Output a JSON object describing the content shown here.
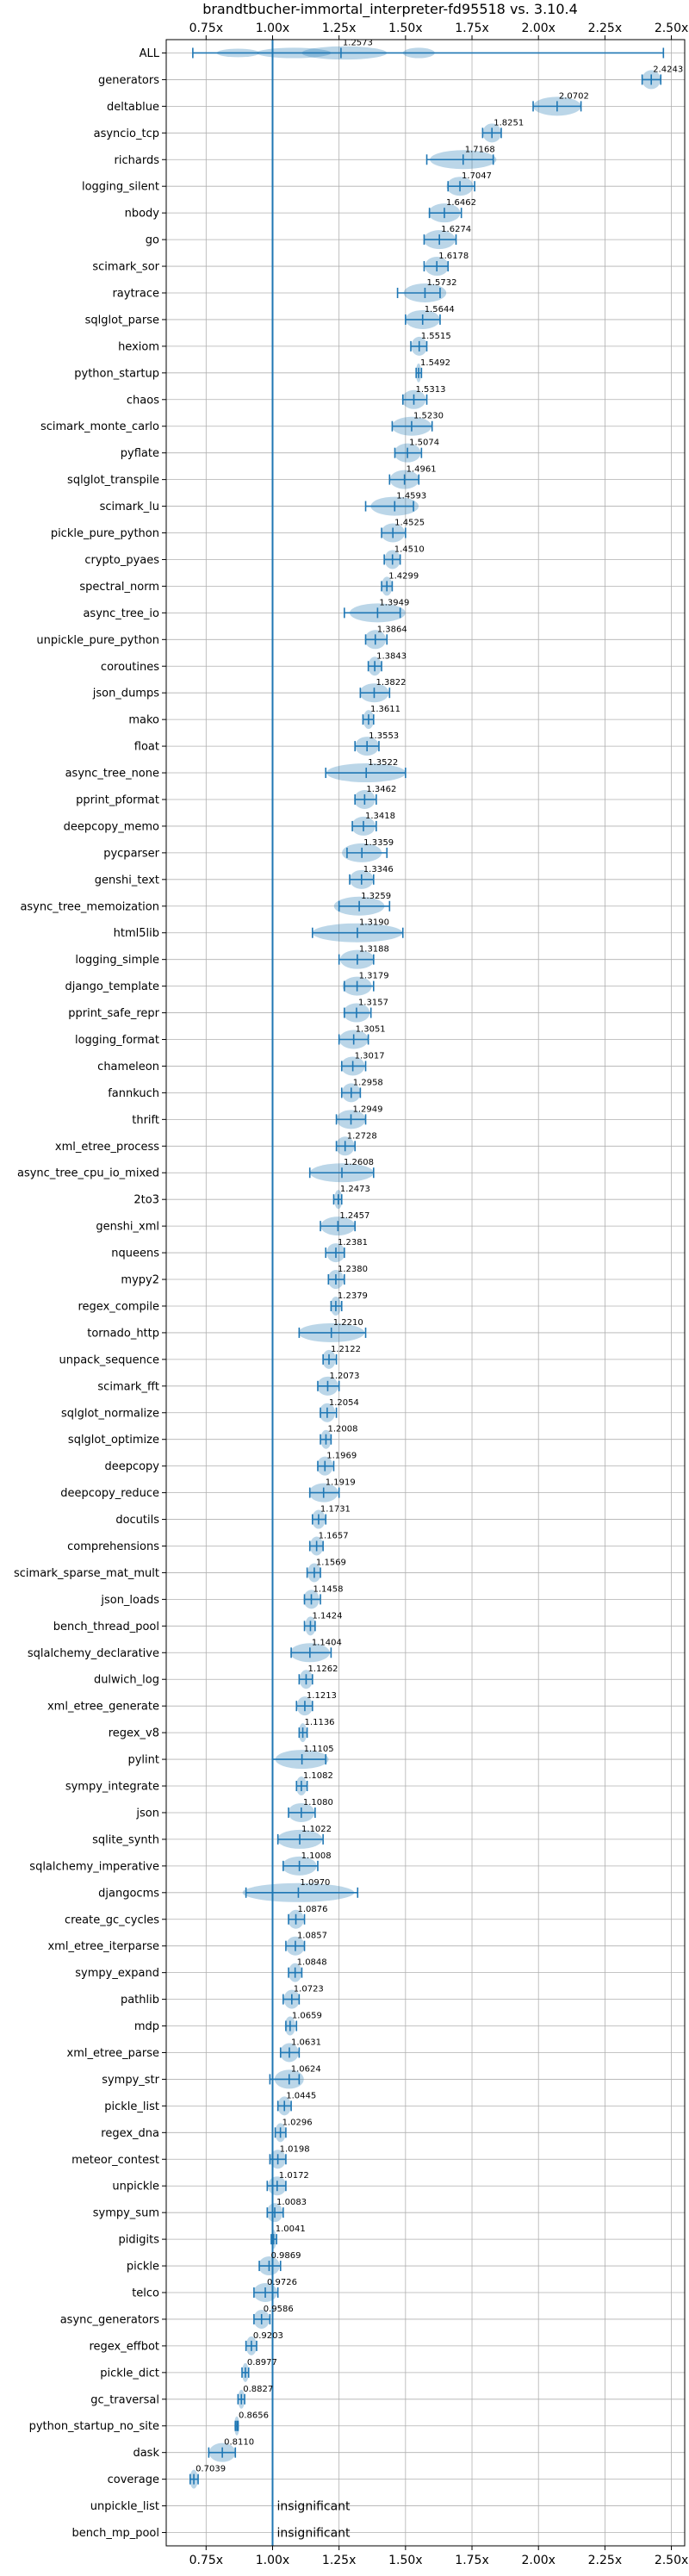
{
  "chart_data": {
    "type": "violin",
    "title": "brandtbucher-immortal_interpreter-fd95518 vs. 3.10.4",
    "xlim": [
      0.6,
      2.55
    ],
    "x_ticks": [
      "0.75x",
      "1.00x",
      "1.25x",
      "1.50x",
      "1.75x",
      "2.00x",
      "2.25x",
      "2.50x"
    ],
    "x_tick_values": [
      0.75,
      1.0,
      1.25,
      1.5,
      1.75,
      2.0,
      2.25,
      2.5
    ],
    "reference_line": 1.0,
    "grid": true,
    "insignificant_text": "insignificant",
    "series": [
      {
        "name": "ALL",
        "value": 1.2573,
        "label": "1.2573",
        "min": 0.7,
        "max": 2.47,
        "spread": "wide"
      },
      {
        "name": "generators",
        "value": 2.4243,
        "label": "2.4243",
        "min": 2.39,
        "max": 2.46
      },
      {
        "name": "deltablue",
        "value": 2.0702,
        "label": "2.0702",
        "min": 1.98,
        "max": 2.16
      },
      {
        "name": "asyncio_tcp",
        "value": 1.8251,
        "label": "1.8251",
        "min": 1.79,
        "max": 1.86
      },
      {
        "name": "richards",
        "value": 1.7168,
        "label": "1.7168",
        "min": 1.58,
        "max": 1.83
      },
      {
        "name": "logging_silent",
        "value": 1.7047,
        "label": "1.7047",
        "min": 1.66,
        "max": 1.76
      },
      {
        "name": "nbody",
        "value": 1.6462,
        "label": "1.6462",
        "min": 1.59,
        "max": 1.71
      },
      {
        "name": "go",
        "value": 1.6274,
        "label": "1.6274",
        "min": 1.57,
        "max": 1.69
      },
      {
        "name": "scimark_sor",
        "value": 1.6178,
        "label": "1.6178",
        "min": 1.57,
        "max": 1.66
      },
      {
        "name": "raytrace",
        "value": 1.5732,
        "label": "1.5732",
        "min": 1.47,
        "max": 1.63
      },
      {
        "name": "sqlglot_parse",
        "value": 1.5644,
        "label": "1.5644",
        "min": 1.5,
        "max": 1.63
      },
      {
        "name": "hexiom",
        "value": 1.5515,
        "label": "1.5515",
        "min": 1.52,
        "max": 1.58
      },
      {
        "name": "python_startup",
        "value": 1.5492,
        "label": "1.5492",
        "min": 1.54,
        "max": 1.56
      },
      {
        "name": "chaos",
        "value": 1.5313,
        "label": "1.5313",
        "min": 1.49,
        "max": 1.58
      },
      {
        "name": "scimark_monte_carlo",
        "value": 1.523,
        "label": "1.5230",
        "min": 1.45,
        "max": 1.6
      },
      {
        "name": "pyflate",
        "value": 1.5074,
        "label": "1.5074",
        "min": 1.46,
        "max": 1.56
      },
      {
        "name": "sqlglot_transpile",
        "value": 1.4961,
        "label": "1.4961",
        "min": 1.44,
        "max": 1.55
      },
      {
        "name": "scimark_lu",
        "value": 1.4593,
        "label": "1.4593",
        "min": 1.35,
        "max": 1.53
      },
      {
        "name": "pickle_pure_python",
        "value": 1.4525,
        "label": "1.4525",
        "min": 1.41,
        "max": 1.5
      },
      {
        "name": "crypto_pyaes",
        "value": 1.451,
        "label": "1.4510",
        "min": 1.42,
        "max": 1.48
      },
      {
        "name": "spectral_norm",
        "value": 1.4299,
        "label": "1.4299",
        "min": 1.41,
        "max": 1.45
      },
      {
        "name": "async_tree_io",
        "value": 1.3949,
        "label": "1.3949",
        "min": 1.27,
        "max": 1.48
      },
      {
        "name": "unpickle_pure_python",
        "value": 1.3864,
        "label": "1.3864",
        "min": 1.35,
        "max": 1.43
      },
      {
        "name": "coroutines",
        "value": 1.3843,
        "label": "1.3843",
        "min": 1.36,
        "max": 1.41
      },
      {
        "name": "json_dumps",
        "value": 1.3822,
        "label": "1.3822",
        "min": 1.33,
        "max": 1.44
      },
      {
        "name": "mako",
        "value": 1.3611,
        "label": "1.3611",
        "min": 1.34,
        "max": 1.38
      },
      {
        "name": "float",
        "value": 1.3553,
        "label": "1.3553",
        "min": 1.31,
        "max": 1.4
      },
      {
        "name": "async_tree_none",
        "value": 1.3522,
        "label": "1.3522",
        "min": 1.2,
        "max": 1.5
      },
      {
        "name": "pprint_pformat",
        "value": 1.3462,
        "label": "1.3462",
        "min": 1.31,
        "max": 1.39
      },
      {
        "name": "deepcopy_memo",
        "value": 1.3418,
        "label": "1.3418",
        "min": 1.3,
        "max": 1.39
      },
      {
        "name": "pycparser",
        "value": 1.3359,
        "label": "1.3359",
        "min": 1.28,
        "max": 1.43
      },
      {
        "name": "genshi_text",
        "value": 1.3346,
        "label": "1.3346",
        "min": 1.29,
        "max": 1.38
      },
      {
        "name": "async_tree_memoization",
        "value": 1.3259,
        "label": "1.3259",
        "min": 1.25,
        "max": 1.44
      },
      {
        "name": "html5lib",
        "value": 1.319,
        "label": "1.3190",
        "min": 1.15,
        "max": 1.49
      },
      {
        "name": "logging_simple",
        "value": 1.3188,
        "label": "1.3188",
        "min": 1.25,
        "max": 1.38
      },
      {
        "name": "django_template",
        "value": 1.3179,
        "label": "1.3179",
        "min": 1.27,
        "max": 1.38
      },
      {
        "name": "pprint_safe_repr",
        "value": 1.3157,
        "label": "1.3157",
        "min": 1.27,
        "max": 1.37
      },
      {
        "name": "logging_format",
        "value": 1.3051,
        "label": "1.3051",
        "min": 1.25,
        "max": 1.36
      },
      {
        "name": "chameleon",
        "value": 1.3017,
        "label": "1.3017",
        "min": 1.26,
        "max": 1.35
      },
      {
        "name": "fannkuch",
        "value": 1.2958,
        "label": "1.2958",
        "min": 1.26,
        "max": 1.33
      },
      {
        "name": "thrift",
        "value": 1.2949,
        "label": "1.2949",
        "min": 1.24,
        "max": 1.35
      },
      {
        "name": "xml_etree_process",
        "value": 1.2728,
        "label": "1.2728",
        "min": 1.24,
        "max": 1.31
      },
      {
        "name": "async_tree_cpu_io_mixed",
        "value": 1.2608,
        "label": "1.2608",
        "min": 1.14,
        "max": 1.38
      },
      {
        "name": "2to3",
        "value": 1.2473,
        "label": "1.2473",
        "min": 1.23,
        "max": 1.26
      },
      {
        "name": "genshi_xml",
        "value": 1.2457,
        "label": "1.2457",
        "min": 1.18,
        "max": 1.31
      },
      {
        "name": "nqueens",
        "value": 1.2381,
        "label": "1.2381",
        "min": 1.2,
        "max": 1.27
      },
      {
        "name": "mypy2",
        "value": 1.238,
        "label": "1.2380",
        "min": 1.21,
        "max": 1.27
      },
      {
        "name": "regex_compile",
        "value": 1.2379,
        "label": "1.2379",
        "min": 1.22,
        "max": 1.26
      },
      {
        "name": "tornado_http",
        "value": 1.221,
        "label": "1.2210",
        "min": 1.1,
        "max": 1.35
      },
      {
        "name": "unpack_sequence",
        "value": 1.2122,
        "label": "1.2122",
        "min": 1.19,
        "max": 1.24
      },
      {
        "name": "scimark_fft",
        "value": 1.2073,
        "label": "1.2073",
        "min": 1.17,
        "max": 1.25
      },
      {
        "name": "sqlglot_normalize",
        "value": 1.2054,
        "label": "1.2054",
        "min": 1.18,
        "max": 1.24
      },
      {
        "name": "sqlglot_optimize",
        "value": 1.2008,
        "label": "1.2008",
        "min": 1.18,
        "max": 1.22
      },
      {
        "name": "deepcopy",
        "value": 1.1969,
        "label": "1.1969",
        "min": 1.17,
        "max": 1.23
      },
      {
        "name": "deepcopy_reduce",
        "value": 1.1919,
        "label": "1.1919",
        "min": 1.14,
        "max": 1.25
      },
      {
        "name": "docutils",
        "value": 1.1731,
        "label": "1.1731",
        "min": 1.15,
        "max": 1.2
      },
      {
        "name": "comprehensions",
        "value": 1.1657,
        "label": "1.1657",
        "min": 1.14,
        "max": 1.19
      },
      {
        "name": "scimark_sparse_mat_mult",
        "value": 1.1569,
        "label": "1.1569",
        "min": 1.13,
        "max": 1.18
      },
      {
        "name": "json_loads",
        "value": 1.1458,
        "label": "1.1458",
        "min": 1.12,
        "max": 1.18
      },
      {
        "name": "bench_thread_pool",
        "value": 1.1424,
        "label": "1.1424",
        "min": 1.12,
        "max": 1.16
      },
      {
        "name": "sqlalchemy_declarative",
        "value": 1.1404,
        "label": "1.1404",
        "min": 1.07,
        "max": 1.22
      },
      {
        "name": "dulwich_log",
        "value": 1.1262,
        "label": "1.1262",
        "min": 1.1,
        "max": 1.15
      },
      {
        "name": "xml_etree_generate",
        "value": 1.1213,
        "label": "1.1213",
        "min": 1.09,
        "max": 1.15
      },
      {
        "name": "regex_v8",
        "value": 1.1136,
        "label": "1.1136",
        "min": 1.1,
        "max": 1.13
      },
      {
        "name": "pylint",
        "value": 1.1105,
        "label": "1.1105",
        "min": 1.0,
        "max": 1.2
      },
      {
        "name": "sympy_integrate",
        "value": 1.1082,
        "label": "1.1082",
        "min": 1.09,
        "max": 1.13
      },
      {
        "name": "json",
        "value": 1.108,
        "label": "1.1080",
        "min": 1.06,
        "max": 1.16
      },
      {
        "name": "sqlite_synth",
        "value": 1.1022,
        "label": "1.1022",
        "min": 1.02,
        "max": 1.19
      },
      {
        "name": "sqlalchemy_imperative",
        "value": 1.1008,
        "label": "1.1008",
        "min": 1.04,
        "max": 1.17
      },
      {
        "name": "djangocms",
        "value": 1.097,
        "label": "1.0970",
        "min": 0.9,
        "max": 1.32
      },
      {
        "name": "create_gc_cycles",
        "value": 1.0876,
        "label": "1.0876",
        "min": 1.06,
        "max": 1.12
      },
      {
        "name": "xml_etree_iterparse",
        "value": 1.0857,
        "label": "1.0857",
        "min": 1.05,
        "max": 1.12
      },
      {
        "name": "sympy_expand",
        "value": 1.0848,
        "label": "1.0848",
        "min": 1.06,
        "max": 1.11
      },
      {
        "name": "pathlib",
        "value": 1.0723,
        "label": "1.0723",
        "min": 1.04,
        "max": 1.1
      },
      {
        "name": "mdp",
        "value": 1.0659,
        "label": "1.0659",
        "min": 1.05,
        "max": 1.09
      },
      {
        "name": "xml_etree_parse",
        "value": 1.0631,
        "label": "1.0631",
        "min": 1.03,
        "max": 1.1
      },
      {
        "name": "sympy_str",
        "value": 1.0624,
        "label": "1.0624",
        "min": 0.99,
        "max": 1.1
      },
      {
        "name": "pickle_list",
        "value": 1.0445,
        "label": "1.0445",
        "min": 1.02,
        "max": 1.07
      },
      {
        "name": "regex_dna",
        "value": 1.0296,
        "label": "1.0296",
        "min": 1.01,
        "max": 1.05
      },
      {
        "name": "meteor_contest",
        "value": 1.0198,
        "label": "1.0198",
        "min": 0.99,
        "max": 1.05
      },
      {
        "name": "unpickle",
        "value": 1.0172,
        "label": "1.0172",
        "min": 0.98,
        "max": 1.05
      },
      {
        "name": "sympy_sum",
        "value": 1.0083,
        "label": "1.0083",
        "min": 0.98,
        "max": 1.04
      },
      {
        "name": "pidigits",
        "value": 1.0041,
        "label": "1.0041",
        "min": 0.995,
        "max": 1.015
      },
      {
        "name": "pickle",
        "value": 0.9869,
        "label": "0.9869",
        "min": 0.95,
        "max": 1.03
      },
      {
        "name": "telco",
        "value": 0.9726,
        "label": "0.9726",
        "min": 0.93,
        "max": 1.02
      },
      {
        "name": "async_generators",
        "value": 0.9586,
        "label": "0.9586",
        "min": 0.93,
        "max": 0.99
      },
      {
        "name": "regex_effbot",
        "value": 0.9203,
        "label": "0.9203",
        "min": 0.9,
        "max": 0.94
      },
      {
        "name": "pickle_dict",
        "value": 0.8977,
        "label": "0.8977",
        "min": 0.885,
        "max": 0.91
      },
      {
        "name": "gc_traversal",
        "value": 0.8827,
        "label": "0.8827",
        "min": 0.87,
        "max": 0.895
      },
      {
        "name": "python_startup_no_site",
        "value": 0.8656,
        "label": "0.8656",
        "min": 0.86,
        "max": 0.87
      },
      {
        "name": "dask",
        "value": 0.811,
        "label": "0.8110",
        "min": 0.76,
        "max": 0.86
      },
      {
        "name": "coverage",
        "value": 0.7039,
        "label": "0.7039",
        "min": 0.69,
        "max": 0.72
      },
      {
        "name": "unpickle_list",
        "value": null,
        "label": "insignificant"
      },
      {
        "name": "bench_mp_pool",
        "value": null,
        "label": "insignificant"
      }
    ]
  }
}
